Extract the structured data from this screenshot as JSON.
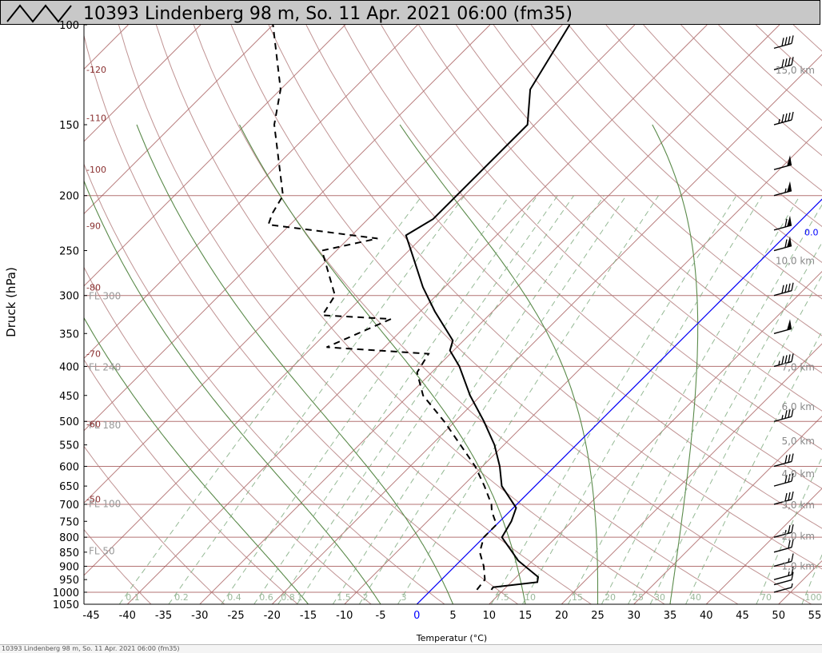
{
  "window": {
    "title": "10393 Lindenberg 98 m, So. 11 Apr. 2021 06:00 (fm35)",
    "bottom_caption": "10393 Lindenberg 98 m, So. 11 Apr. 2021 06:00 (fm35)"
  },
  "colors": {
    "isobar": "#a05050",
    "isotherm": "#a05050",
    "dry_adiabat": "#b07878",
    "moist_adiabat": "#5a8a4a",
    "mixing_ratio": "#7aa87a",
    "zero_isotherm": "#0000ff",
    "profile": "#000000"
  },
  "chart_data": {
    "type": "line",
    "chart_kind": "skew-T log-p",
    "xlabel": "Temperatur (°C)",
    "ylabel": "Druck (hPa)",
    "x_ticks": [
      -45,
      -40,
      -35,
      -30,
      -25,
      -20,
      -15,
      -10,
      -5,
      0,
      5,
      10,
      15,
      20,
      25,
      30,
      35,
      40,
      45,
      50,
      55
    ],
    "y_ticks": [
      100,
      150,
      200,
      250,
      300,
      350,
      400,
      450,
      500,
      550,
      600,
      650,
      700,
      750,
      800,
      850,
      900,
      950,
      1000,
      1050
    ],
    "pressure_range": [
      100,
      1050
    ],
    "temperature_range_at_1050": [
      -46,
      56
    ],
    "isobar_lines": [
      200,
      300,
      400,
      500,
      600,
      700,
      800,
      900,
      1000
    ],
    "flight_levels": [
      {
        "label": "FL 300",
        "p": 300
      },
      {
        "label": "FL 240",
        "p": 400
      },
      {
        "label": "FL 180",
        "p": 506
      },
      {
        "label": "FL 100",
        "p": 697
      },
      {
        "label": "FL 50",
        "p": 843
      }
    ],
    "potential_temperature_labels": [
      {
        "label": "-120",
        "p": 120
      },
      {
        "label": "-110",
        "p": 146
      },
      {
        "label": "-100",
        "p": 180
      },
      {
        "label": "-90",
        "p": 226
      },
      {
        "label": "-80",
        "p": 290
      },
      {
        "label": "-70",
        "p": 380
      },
      {
        "label": "-60",
        "p": 505
      },
      {
        "label": "-50",
        "p": 685
      }
    ],
    "mixing_ratio_labels": [
      "0.1",
      "0.2",
      "0.4",
      "0.6",
      "0.8",
      "1",
      "1.5",
      "2",
      "3",
      "7.5",
      "10",
      "15",
      "20",
      "25",
      "30",
      "40",
      "70",
      "100"
    ],
    "height_labels": [
      {
        "label": "15,0 km",
        "p": 120
      },
      {
        "label": "10,0 km",
        "p": 260
      },
      {
        "label": "7,0 km",
        "p": 400
      },
      {
        "label": "6,0 km",
        "p": 470
      },
      {
        "label": "5,0 km",
        "p": 540
      },
      {
        "label": "4,0 km",
        "p": 617
      },
      {
        "label": "3,0 km",
        "p": 700
      },
      {
        "label": "2,0 km",
        "p": 795
      },
      {
        "label": "1,0 km",
        "p": 897
      }
    ],
    "zero_isotherm_label": "0.0",
    "series": [
      {
        "role": "temperature",
        "style": "solid",
        "points": [
          {
            "p": 990,
            "t": 8.3
          },
          {
            "p": 980,
            "t": 8.2
          },
          {
            "p": 960,
            "t": 13.6
          },
          {
            "p": 940,
            "t": 13.0
          },
          {
            "p": 880,
            "t": 8.0
          },
          {
            "p": 800,
            "t": 2.5
          },
          {
            "p": 750,
            "t": 1.6
          },
          {
            "p": 710,
            "t": 0.4
          },
          {
            "p": 650,
            "t": -4.6
          },
          {
            "p": 600,
            "t": -7.6
          },
          {
            "p": 550,
            "t": -11.3
          },
          {
            "p": 500,
            "t": -16.0
          },
          {
            "p": 450,
            "t": -21.5
          },
          {
            "p": 400,
            "t": -27.0
          },
          {
            "p": 375,
            "t": -30.5
          },
          {
            "p": 360,
            "t": -31.5
          },
          {
            "p": 320,
            "t": -38.0
          },
          {
            "p": 290,
            "t": -43.0
          },
          {
            "p": 255,
            "t": -48.8
          },
          {
            "p": 235,
            "t": -52.5
          },
          {
            "p": 220,
            "t": -51.0
          },
          {
            "p": 200,
            "t": -51.0
          },
          {
            "p": 150,
            "t": -51.0
          },
          {
            "p": 130,
            "t": -55.5
          },
          {
            "p": 100,
            "t": -59.0
          }
        ]
      },
      {
        "role": "dewpoint",
        "style": "dashed",
        "points": [
          {
            "p": 990,
            "t": 6.3
          },
          {
            "p": 950,
            "t": 6.0
          },
          {
            "p": 900,
            "t": 4.0
          },
          {
            "p": 850,
            "t": 1.5
          },
          {
            "p": 800,
            "t": 0.0
          },
          {
            "p": 760,
            "t": 0.0
          },
          {
            "p": 720,
            "t": -2.5
          },
          {
            "p": 700,
            "t": -3.5
          },
          {
            "p": 650,
            "t": -7.0
          },
          {
            "p": 600,
            "t": -11.0
          },
          {
            "p": 550,
            "t": -16.0
          },
          {
            "p": 500,
            "t": -21.5
          },
          {
            "p": 450,
            "t": -28.0
          },
          {
            "p": 410,
            "t": -32.0
          },
          {
            "p": 380,
            "t": -33.0
          },
          {
            "p": 370,
            "t": -48.0
          },
          {
            "p": 330,
            "t": -43.0
          },
          {
            "p": 325,
            "t": -53.0
          },
          {
            "p": 300,
            "t": -54.0
          },
          {
            "p": 250,
            "t": -62.0
          },
          {
            "p": 238,
            "t": -56.0
          },
          {
            "p": 225,
            "t": -73.0
          },
          {
            "p": 215,
            "t": -74.0
          },
          {
            "p": 200,
            "t": -75.0
          },
          {
            "p": 150,
            "t": -86.0
          },
          {
            "p": 130,
            "t": -90.0
          },
          {
            "p": 100,
            "t": -100.0
          }
        ]
      }
    ],
    "wind_barbs": [
      {
        "p": 1000,
        "speed": 5
      },
      {
        "p": 970,
        "speed": 10
      },
      {
        "p": 950,
        "speed": 15
      },
      {
        "p": 900,
        "speed": 15
      },
      {
        "p": 850,
        "speed": 20
      },
      {
        "p": 800,
        "speed": 25
      },
      {
        "p": 700,
        "speed": 30
      },
      {
        "p": 650,
        "speed": 30
      },
      {
        "p": 600,
        "speed": 30
      },
      {
        "p": 500,
        "speed": 35
      },
      {
        "p": 400,
        "speed": 45
      },
      {
        "p": 350,
        "speed": 50
      },
      {
        "p": 300,
        "speed": 40
      },
      {
        "p": 250,
        "speed": 60
      },
      {
        "p": 230,
        "speed": 60
      },
      {
        "p": 200,
        "speed": 55
      },
      {
        "p": 180,
        "speed": 50
      },
      {
        "p": 150,
        "speed": 45
      },
      {
        "p": 120,
        "speed": 40
      },
      {
        "p": 110,
        "speed": 40
      }
    ]
  }
}
